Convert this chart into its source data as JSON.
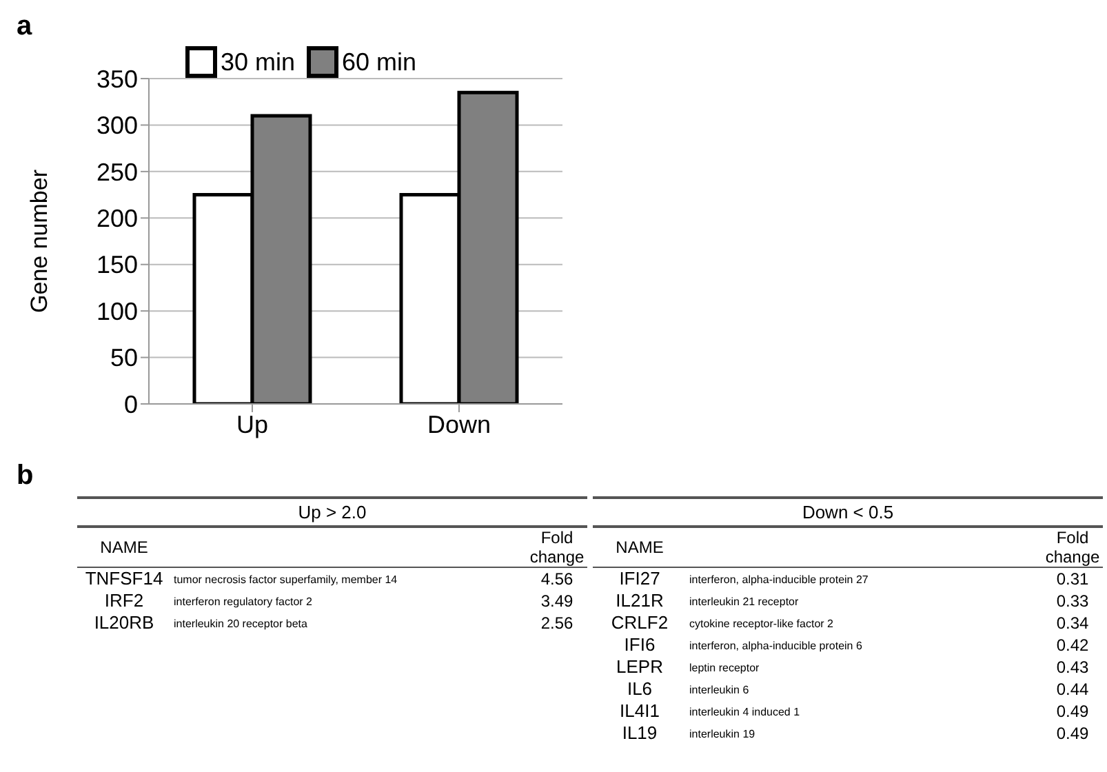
{
  "chart_data": [
    {
      "type": "bar",
      "ylabel": "Gene number",
      "categories": [
        "Up",
        "Down"
      ],
      "series": [
        {
          "name": "30 min",
          "color": "#ffffff",
          "values": [
            225,
            225
          ]
        },
        {
          "name": "60 min",
          "color": "#808080",
          "values": [
            310,
            335
          ]
        }
      ],
      "ylim": [
        0,
        350
      ],
      "yticks": [
        0,
        50,
        100,
        150,
        200,
        250,
        300,
        350
      ],
      "grid": "y",
      "legend": "top",
      "annotations": [
        "a",
        "b"
      ]
    },
    {
      "type": "other",
      "title": "Up > 2.0",
      "annotations": [
        "NAME",
        "Fold change",
        "TNFSF14",
        "tumor necrosis factor superfamily, member 14",
        "4.56",
        "IRF2",
        "interferon regulatory factor 2",
        "3.49",
        "IL20RB",
        "interleukin 20 receptor beta",
        "2.56"
      ]
    },
    {
      "type": "other",
      "title": "Down < 0.5",
      "annotations": [
        "NAME",
        "Fold change",
        "IFI27",
        "interferon, alpha-inducible protein 27",
        "0.31",
        "IL21R",
        "interleukin 21 receptor",
        "0.33",
        "CRLF2",
        "cytokine receptor-like factor 2",
        "0.34",
        "IFI6",
        "interferon, alpha-inducible protein 6",
        "0.42",
        "LEPR",
        "leptin receptor",
        "0.43",
        "IL6",
        "interleukin 6",
        "0.44",
        "IL4I1",
        "interleukin 4 induced 1",
        "0.49",
        "IL19",
        "interleukin 19",
        "0.49"
      ]
    }
  ]
}
